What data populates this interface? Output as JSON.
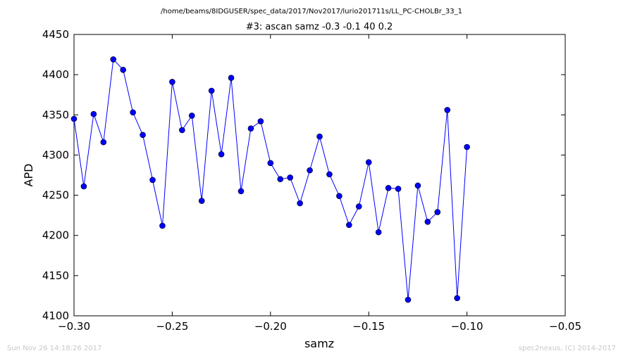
{
  "figure": {
    "suptitle": "/home/beams/8IDGUSER/spec_data/2017/Nov2017/lurio201711s/LL_PC-CHOLBr_33_1",
    "footer_left": "Sun Nov 26 14:18:26 2017",
    "footer_right": "spec2nexus, (C) 2014-2017"
  },
  "chart_data": {
    "type": "line",
    "title": "#3: ascan  samz -0.3 -0.1  40 0.2",
    "xlabel": "samz",
    "ylabel": "APD",
    "xlim": [
      -0.3,
      -0.05
    ],
    "ylim": [
      4100,
      4450
    ],
    "xticks": [
      -0.3,
      -0.25,
      -0.2,
      -0.15,
      -0.1,
      -0.05
    ],
    "xtick_labels": [
      "−0.30",
      "−0.25",
      "−0.20",
      "−0.15",
      "−0.10",
      "−0.05"
    ],
    "yticks": [
      4100,
      4150,
      4200,
      4250,
      4300,
      4350,
      4400,
      4450
    ],
    "ytick_labels": [
      "4100",
      "4150",
      "4200",
      "4250",
      "4300",
      "4350",
      "4400",
      "4450"
    ],
    "grid": false,
    "series": [
      {
        "color": "#0000ff",
        "marker": "circle",
        "x": [
          -0.3,
          -0.295,
          -0.29,
          -0.285,
          -0.28,
          -0.275,
          -0.27,
          -0.265,
          -0.26,
          -0.255,
          -0.25,
          -0.245,
          -0.24,
          -0.235,
          -0.23,
          -0.225,
          -0.22,
          -0.215,
          -0.21,
          -0.205,
          -0.2,
          -0.195,
          -0.19,
          -0.185,
          -0.18,
          -0.175,
          -0.17,
          -0.165,
          -0.16,
          -0.155,
          -0.15,
          -0.145,
          -0.14,
          -0.135,
          -0.13,
          -0.125,
          -0.12,
          -0.115,
          -0.11,
          -0.105,
          -0.1
        ],
        "y": [
          4345,
          4261,
          4351,
          4316,
          4419,
          4406,
          4353,
          4325,
          4269,
          4212,
          4391,
          4331,
          4349,
          4243,
          4380,
          4301,
          4396,
          4255,
          4333,
          4342,
          4290,
          4270,
          4272,
          4240,
          4281,
          4323,
          4276,
          4249,
          4213,
          4236,
          4291,
          4204,
          4259,
          4258,
          4120,
          4262,
          4217,
          4229,
          4356,
          4122,
          4310
        ]
      }
    ]
  }
}
